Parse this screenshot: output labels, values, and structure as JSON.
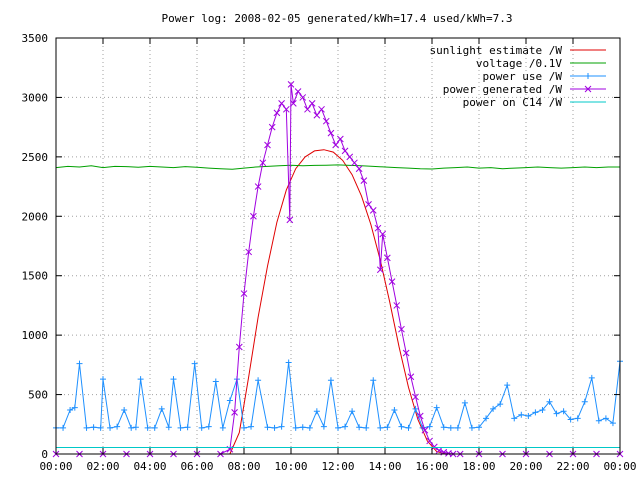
{
  "chart_data": {
    "type": "line",
    "title": "Power log: 2008-02-05 generated/kWh=17.4 used/kWh=7.3",
    "xlabel": "",
    "ylabel": "",
    "xlim": [
      0,
      24
    ],
    "ylim": [
      0,
      3500
    ],
    "x_ticks": [
      "00:00",
      "02:00",
      "04:00",
      "06:00",
      "08:00",
      "10:00",
      "12:00",
      "14:00",
      "16:00",
      "18:00",
      "20:00",
      "22:00",
      "00:00"
    ],
    "y_ticks": [
      0,
      500,
      1000,
      1500,
      2000,
      2500,
      3000,
      3500
    ],
    "grid": true,
    "legend_position": "top-right",
    "series": [
      {
        "name": "sunlight estimate /W",
        "color": "#e00000",
        "marker": "none",
        "x": [
          7.4,
          7.8,
          8.2,
          8.6,
          9.0,
          9.4,
          9.8,
          10.2,
          10.6,
          11.0,
          11.4,
          11.8,
          12.2,
          12.6,
          13.0,
          13.4,
          13.8,
          14.2,
          14.6,
          15.0,
          15.4,
          15.8,
          16.2,
          16.6
        ],
        "values": [
          0,
          180,
          650,
          1150,
          1580,
          1950,
          2220,
          2400,
          2500,
          2550,
          2560,
          2540,
          2470,
          2350,
          2170,
          1930,
          1630,
          1280,
          900,
          560,
          290,
          110,
          20,
          0
        ]
      },
      {
        "name": "voltage /0.1V",
        "color": "#00a000",
        "marker": "none",
        "x": [
          0,
          0.5,
          1,
          1.5,
          2,
          2.5,
          3,
          3.5,
          4,
          4.5,
          5,
          5.5,
          6,
          6.5,
          7,
          7.5,
          8,
          8.5,
          9,
          9.5,
          10,
          10.5,
          11,
          11.5,
          12,
          12.5,
          13,
          13.5,
          14,
          14.5,
          15,
          15.5,
          16,
          16.5,
          17,
          17.5,
          18,
          18.5,
          19,
          19.5,
          20,
          20.5,
          21,
          21.5,
          22,
          22.5,
          23,
          23.5,
          24
        ],
        "values": [
          2410,
          2420,
          2415,
          2425,
          2410,
          2420,
          2418,
          2412,
          2420,
          2415,
          2410,
          2418,
          2412,
          2405,
          2400,
          2395,
          2405,
          2415,
          2420,
          2425,
          2430,
          2425,
          2428,
          2430,
          2432,
          2428,
          2425,
          2420,
          2415,
          2410,
          2405,
          2400,
          2398,
          2405,
          2410,
          2415,
          2405,
          2410,
          2400,
          2405,
          2410,
          2415,
          2410,
          2405,
          2410,
          2415,
          2410,
          2415,
          2415
        ]
      },
      {
        "name": "power use /W",
        "color": "#1e90ff",
        "marker": "plus",
        "x": [
          0.0,
          0.3,
          0.6,
          0.8,
          1.0,
          1.3,
          1.6,
          1.9,
          2.0,
          2.3,
          2.6,
          2.9,
          3.2,
          3.4,
          3.6,
          3.9,
          4.2,
          4.5,
          4.8,
          5.0,
          5.3,
          5.6,
          5.9,
          6.2,
          6.5,
          6.8,
          7.1,
          7.4,
          7.7,
          8.0,
          8.3,
          8.6,
          9.0,
          9.3,
          9.6,
          9.9,
          10.2,
          10.5,
          10.8,
          11.1,
          11.4,
          11.7,
          12.0,
          12.3,
          12.6,
          12.9,
          13.2,
          13.5,
          13.8,
          14.1,
          14.4,
          14.7,
          15.0,
          15.3,
          15.6,
          15.9,
          16.2,
          16.5,
          16.8,
          17.1,
          17.4,
          17.7,
          18.0,
          18.3,
          18.6,
          18.9,
          19.2,
          19.5,
          19.8,
          20.1,
          20.4,
          20.7,
          21.0,
          21.3,
          21.6,
          21.9,
          22.2,
          22.5,
          22.8,
          23.1,
          23.4,
          23.7,
          24.0
        ],
        "values": [
          220,
          220,
          370,
          390,
          760,
          220,
          225,
          220,
          630,
          220,
          230,
          370,
          220,
          225,
          630,
          220,
          220,
          380,
          225,
          630,
          220,
          225,
          760,
          220,
          230,
          610,
          220,
          450,
          630,
          220,
          230,
          620,
          225,
          220,
          230,
          770,
          220,
          225,
          220,
          360,
          230,
          620,
          220,
          230,
          360,
          225,
          220,
          620,
          220,
          225,
          370,
          230,
          220,
          380,
          220,
          230,
          390,
          225,
          220,
          220,
          430,
          220,
          225,
          300,
          380,
          420,
          580,
          300,
          330,
          320,
          350,
          370,
          440,
          340,
          360,
          290,
          300,
          440,
          640,
          280,
          300,
          260,
          780
        ]
      },
      {
        "name": "power generated /W",
        "color": "#a000e0",
        "marker": "x",
        "x": [
          0,
          1,
          2,
          3,
          4,
          5,
          6,
          7,
          7.4,
          7.6,
          7.8,
          8.0,
          8.2,
          8.4,
          8.6,
          8.8,
          9.0,
          9.2,
          9.4,
          9.6,
          9.8,
          9.95,
          10.0,
          10.1,
          10.3,
          10.5,
          10.7,
          10.9,
          11.1,
          11.3,
          11.5,
          11.7,
          11.9,
          12.1,
          12.3,
          12.5,
          12.7,
          12.9,
          13.1,
          13.3,
          13.5,
          13.7,
          13.8,
          13.9,
          14.1,
          14.3,
          14.5,
          14.7,
          14.9,
          15.1,
          15.3,
          15.5,
          15.7,
          15.9,
          16.1,
          16.3,
          16.5,
          16.7,
          16.9,
          17.2,
          18,
          19,
          20,
          21,
          22,
          23,
          24
        ],
        "values": [
          0,
          0,
          0,
          0,
          0,
          0,
          0,
          0,
          40,
          350,
          900,
          1350,
          1700,
          2000,
          2250,
          2450,
          2600,
          2750,
          2870,
          2950,
          2900,
          1970,
          3110,
          2950,
          3050,
          3000,
          2900,
          2950,
          2850,
          2900,
          2800,
          2700,
          2600,
          2650,
          2550,
          2500,
          2450,
          2400,
          2300,
          2100,
          2050,
          1900,
          1550,
          1850,
          1650,
          1450,
          1250,
          1050,
          850,
          650,
          480,
          320,
          200,
          110,
          60,
          30,
          15,
          5,
          0,
          0,
          0,
          0,
          0,
          0,
          0,
          0,
          0
        ]
      },
      {
        "name": "power on C14 /W",
        "color": "#00c8c8",
        "marker": "none",
        "x": [
          0,
          2,
          4,
          6,
          8,
          10,
          12,
          14,
          16,
          18,
          20,
          22,
          24
        ],
        "values": [
          55,
          55,
          55,
          55,
          55,
          55,
          55,
          55,
          55,
          55,
          55,
          55,
          55
        ]
      }
    ]
  }
}
